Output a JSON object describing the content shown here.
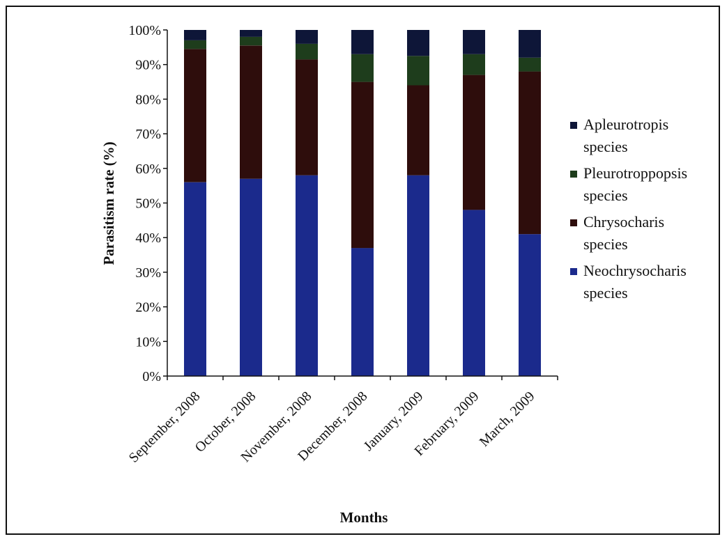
{
  "chart_data": {
    "type": "bar",
    "stacked": true,
    "stacked_100_percent": true,
    "title": "",
    "xlabel": "Months",
    "ylabel": "Parasitism rate  (%)",
    "ylim": [
      0,
      100
    ],
    "yticks": [
      "0%",
      "10%",
      "20%",
      "30%",
      "40%",
      "50%",
      "60%",
      "70%",
      "80%",
      "90%",
      "100%"
    ],
    "categories": [
      "September, 2008",
      "October, 2008",
      "November, 2008",
      "December, 2008",
      "January, 2009",
      "February, 2009",
      "March, 2009"
    ],
    "series": [
      {
        "name": "Neochrysocharis species",
        "color": "#1b2a8c",
        "values": [
          56,
          57,
          58,
          37,
          58,
          48,
          41
        ]
      },
      {
        "name": "Chrysocharis species",
        "color": "#2e0d0c",
        "values": [
          38.5,
          38.5,
          33.5,
          48,
          26,
          39,
          47
        ]
      },
      {
        "name": "Pleurotroppopsis species",
        "color": "#1e3d1c",
        "values": [
          2.5,
          2.5,
          4.5,
          8,
          8.5,
          6,
          4
        ]
      },
      {
        "name": "Apleurotropis species",
        "color": "#0e1638",
        "values": [
          3,
          2,
          4,
          7,
          7.5,
          7,
          8
        ]
      }
    ],
    "legend": {
      "position": "right",
      "entries": [
        "Apleurotropis species",
        "Pleurotroppopsis species",
        "Chrysocharis species",
        "Neochrysocharis species"
      ],
      "lines": [
        [
          "Apleurotropis",
          "species"
        ],
        [
          "Pleurotroppopsis",
          "species"
        ],
        [
          "Chrysocharis",
          "species"
        ],
        [
          "Neochrysocharis",
          "species"
        ]
      ]
    },
    "grid": false
  }
}
